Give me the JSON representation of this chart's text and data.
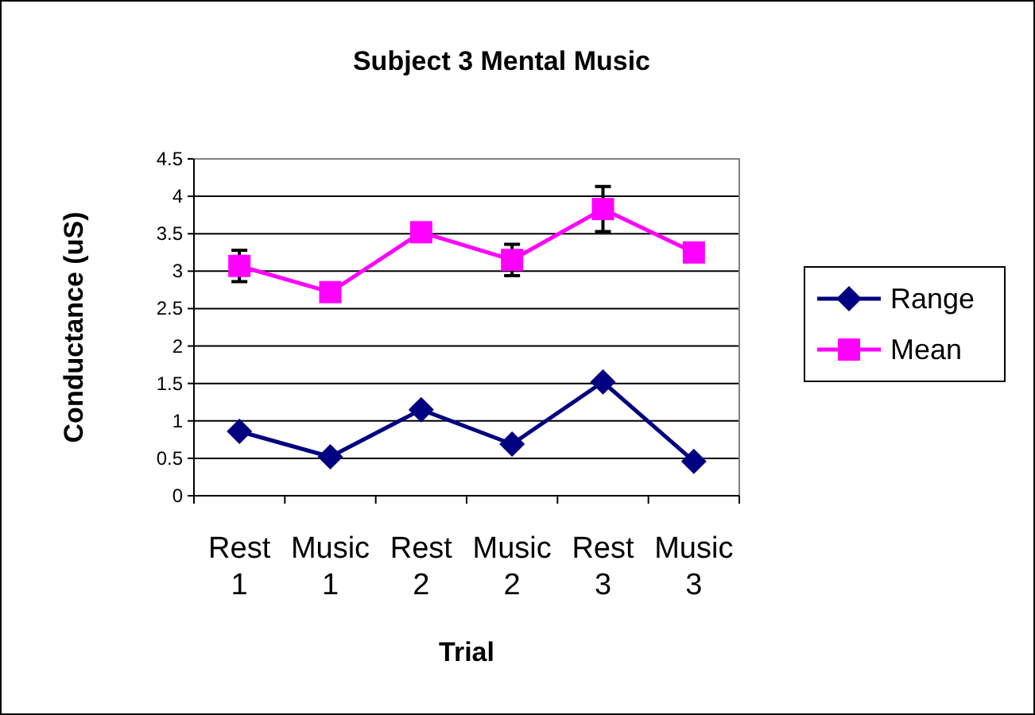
{
  "chart_data": {
    "type": "line",
    "title": "Subject 3 Mental Music",
    "xlabel": "Trial",
    "ylabel": "Conductance (uS)",
    "categories": [
      "Rest 1",
      "Music 1",
      "Rest 2",
      "Music 2",
      "Rest 3",
      "Music 3"
    ],
    "series": [
      {
        "name": "Range",
        "color": "#000080",
        "marker": "diamond",
        "values": [
          0.86,
          0.52,
          1.15,
          0.69,
          1.52,
          0.46
        ]
      },
      {
        "name": "Mean",
        "color": "#ff00ff",
        "marker": "square",
        "values": [
          3.07,
          2.72,
          3.52,
          3.15,
          3.83,
          3.25
        ],
        "errors": [
          0.21,
          null,
          null,
          0.21,
          0.3,
          null
        ]
      }
    ],
    "ylim": [
      0,
      4.5
    ],
    "yticks": [
      0,
      0.5,
      1,
      1.5,
      2,
      2.5,
      3,
      3.5,
      4,
      4.5
    ],
    "grid": "y",
    "legend": "right"
  }
}
